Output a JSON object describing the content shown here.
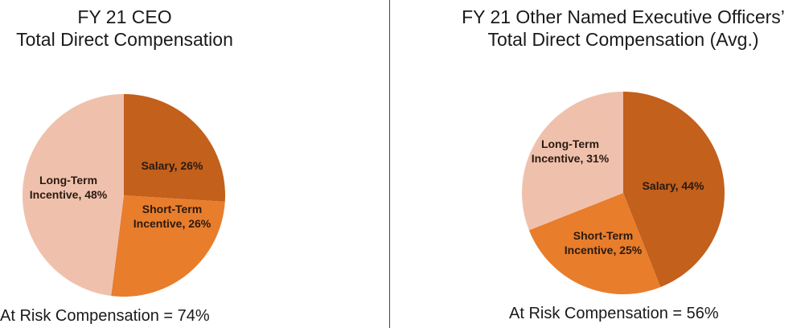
{
  "colors": {
    "salary": "#c2601c",
    "short_term": "#e87d2c",
    "long_term": "#efc1ad",
    "divider": "#444444"
  },
  "left_panel": {
    "title_lines": [
      "FY 21 CEO",
      "Total Direct Compensation"
    ],
    "footer": "At Risk Compensation = 74%"
  },
  "right_panel": {
    "title_lines": [
      "FY 21 Other Named Executive Officers’",
      "Total Direct Compensation (Avg.)"
    ],
    "footer": "At Risk Compensation = 56%"
  },
  "chart_data": [
    {
      "type": "pie",
      "title": "FY 21 CEO Total Direct Compensation",
      "slices": [
        {
          "label_lines": [
            "Salary, 26%"
          ],
          "value": 26,
          "color_key": "salary"
        },
        {
          "label_lines": [
            "Short-Term",
            "Incentive, 26%"
          ],
          "value": 26,
          "color_key": "short_term"
        },
        {
          "label_lines": [
            "Long-Term",
            "Incentive, 48%"
          ],
          "value": 48,
          "color_key": "long_term"
        }
      ]
    },
    {
      "type": "pie",
      "title": "FY 21 Other Named Executive Officers’ Total Direct Compensation (Avg.)",
      "slices": [
        {
          "label_lines": [
            "Salary, 44%"
          ],
          "value": 44,
          "color_key": "salary"
        },
        {
          "label_lines": [
            "Short-Term",
            "Incentive, 25%"
          ],
          "value": 25,
          "color_key": "short_term"
        },
        {
          "label_lines": [
            "Long-Term",
            "Incentive, 31%"
          ],
          "value": 31,
          "color_key": "long_term"
        }
      ]
    }
  ]
}
